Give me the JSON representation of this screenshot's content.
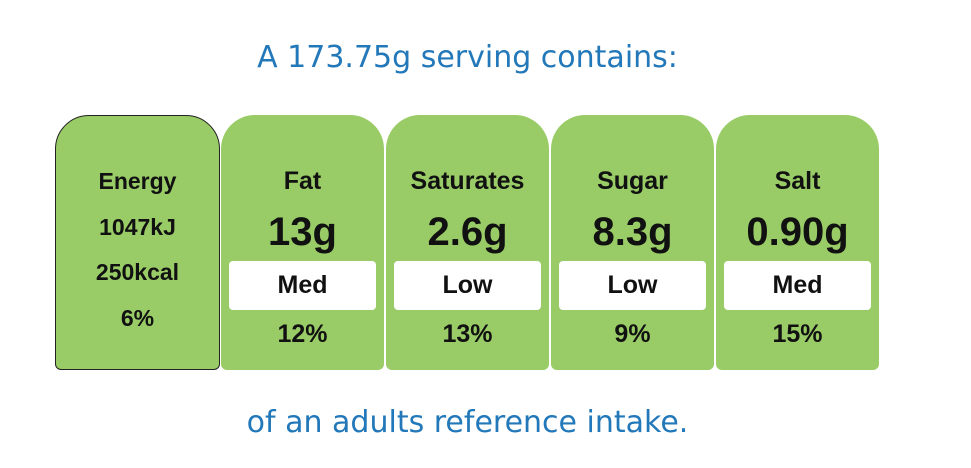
{
  "header": {
    "title": "A 173.75g serving contains:"
  },
  "energy": {
    "label": "Energy",
    "kj": "1047kJ",
    "kcal": "250kcal",
    "percent": "6%"
  },
  "nutrients": [
    {
      "name": "Fat",
      "amount": "13g",
      "level": "Med",
      "percent": "12%"
    },
    {
      "name": "Saturates",
      "amount": "2.6g",
      "level": "Low",
      "percent": "13%"
    },
    {
      "name": "Sugar",
      "amount": "8.3g",
      "level": "Low",
      "percent": "9%"
    },
    {
      "name": "Salt",
      "amount": "0.90g",
      "level": "Med",
      "percent": "15%"
    }
  ],
  "footer": {
    "text": "of an adults reference intake."
  }
}
